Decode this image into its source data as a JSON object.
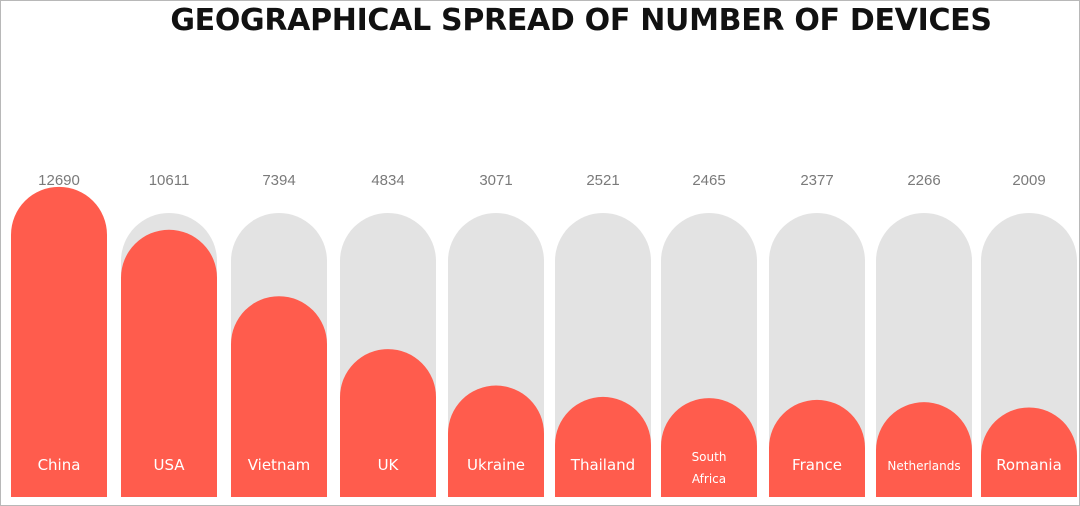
{
  "chart_data": {
    "type": "bar",
    "title": "GEOGRAPHICAL SPREAD OF NUMBER OF DEVICES",
    "categories": [
      "China",
      "USA",
      "Vietnam",
      "UK",
      "Ukraine",
      "Thailand",
      "South Africa",
      "France",
      "Netherlands",
      "Romania"
    ],
    "values": [
      12690,
      10611,
      7394,
      4834,
      3071,
      2521,
      2465,
      2377,
      2266,
      2009
    ],
    "value_labels": [
      "12690",
      "10611",
      "7394",
      "4834",
      "3071",
      "2521",
      "2465",
      "2377",
      "2266",
      "2009"
    ],
    "xlabel": "",
    "ylabel": "",
    "grid": false,
    "legend": "none"
  },
  "colors": {
    "bar": "#ff5c4d",
    "track": "#e3e3e3"
  }
}
